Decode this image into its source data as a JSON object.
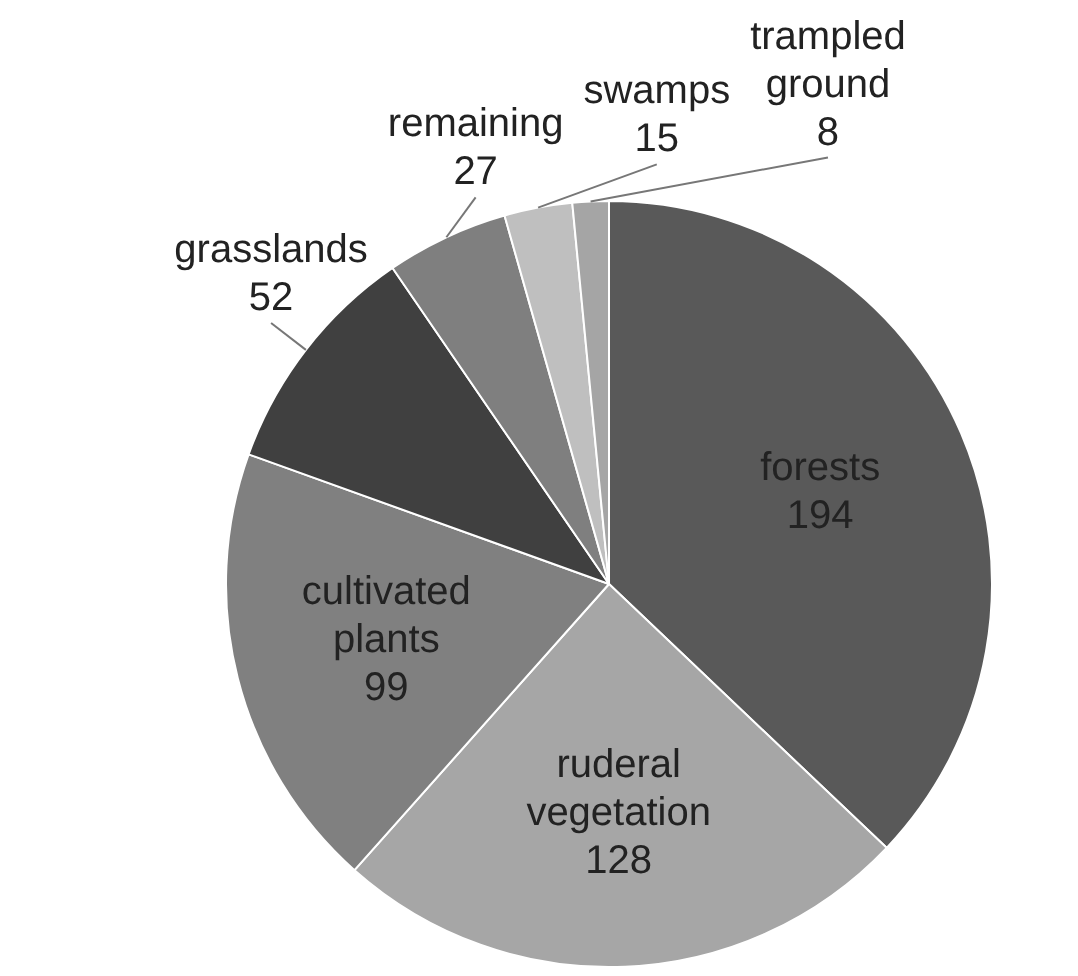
{
  "chart_data": {
    "type": "pie",
    "categories": [
      "forests",
      "ruderal vegetation",
      "cultivated plants",
      "grasslands",
      "remaining",
      "swamps",
      "trampled ground"
    ],
    "values": [
      194,
      128,
      99,
      52,
      27,
      15,
      8
    ],
    "colors": [
      "#595959",
      "#a6a6a6",
      "#808080",
      "#404040",
      "#7f7f7f",
      "#bfbfbf",
      "#a5a5a5"
    ],
    "data_labels": true
  }
}
